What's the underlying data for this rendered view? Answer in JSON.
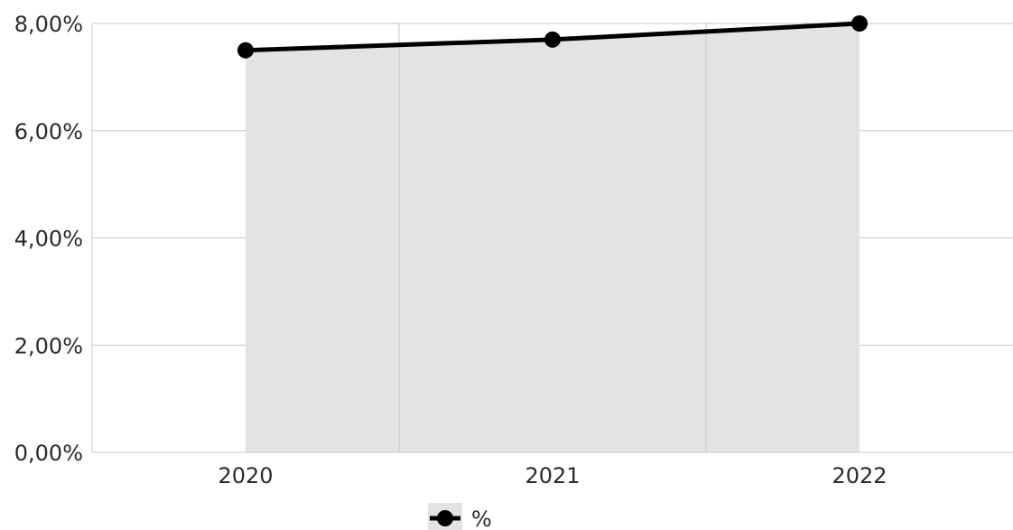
{
  "chart_data": {
    "type": "area",
    "categories": [
      "2020",
      "2021",
      "2022"
    ],
    "series": [
      {
        "name": "%",
        "values": [
          7.5,
          7.7,
          8.0
        ],
        "line_color": "#000000",
        "fill_color": "#e3e3e3"
      }
    ],
    "ylim": [
      0,
      8
    ],
    "y_ticks": [
      0,
      2,
      4,
      6,
      8
    ],
    "y_tick_labels": [
      "0,00%",
      "2,00%",
      "4,00%",
      "6,00%",
      "8,00%"
    ],
    "grid": true,
    "grid_color": "#c7c9cf",
    "legend": {
      "position": "bottom-center",
      "entries": [
        "%"
      ]
    }
  }
}
